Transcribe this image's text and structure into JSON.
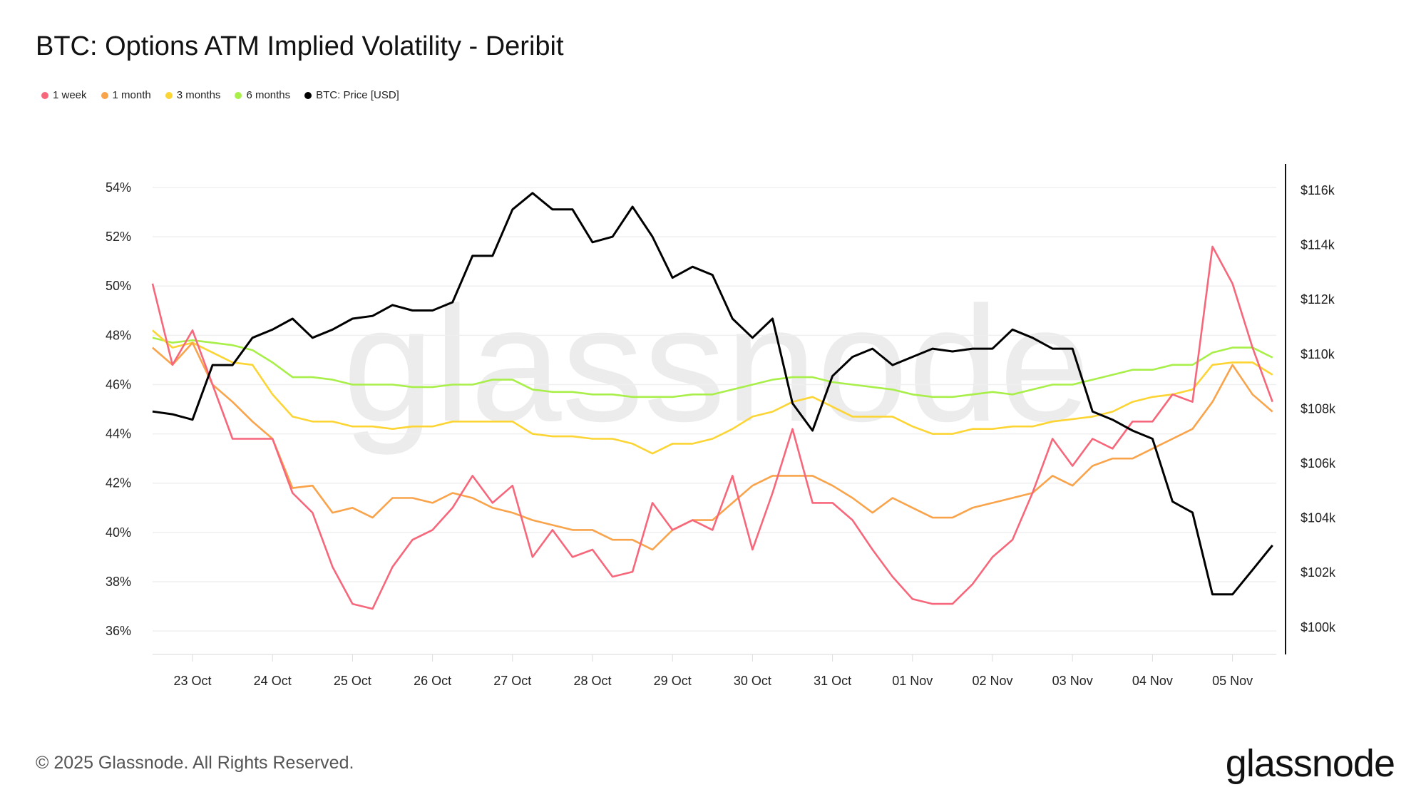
{
  "title": "BTC: Options ATM Implied Volatility - Deribit",
  "footer": "© 2025 Glassnode. All Rights Reserved.",
  "logo": "glassnode",
  "watermark": "glassnode",
  "chart_data": {
    "type": "line",
    "title": "BTC: Options ATM Implied Volatility - Deribit",
    "legend_position": "top-left",
    "grid": true,
    "x_ticks": [
      "23 Oct",
      "24 Oct",
      "25 Oct",
      "26 Oct",
      "27 Oct",
      "28 Oct",
      "29 Oct",
      "30 Oct",
      "31 Oct",
      "01 Nov",
      "02 Nov",
      "03 Nov",
      "04 Nov",
      "05 Nov"
    ],
    "y_left": {
      "ticks": [
        "36%",
        "38%",
        "40%",
        "42%",
        "44%",
        "46%",
        "48%",
        "50%",
        "52%",
        "54%"
      ],
      "range": [
        35,
        55
      ]
    },
    "y_right": {
      "ticks": [
        "$100k",
        "$102k",
        "$104k",
        "$106k",
        "$108k",
        "$110k",
        "$112k",
        "$114k",
        "$116k"
      ],
      "range": [
        99,
        117
      ]
    },
    "x": [
      "2025-10-22T12:00",
      "2025-10-22T18:00",
      "2025-10-23T00:00",
      "2025-10-23T06:00",
      "2025-10-23T12:00",
      "2025-10-23T18:00",
      "2025-10-24T00:00",
      "2025-10-24T06:00",
      "2025-10-24T12:00",
      "2025-10-24T18:00",
      "2025-10-25T00:00",
      "2025-10-25T06:00",
      "2025-10-25T12:00",
      "2025-10-25T18:00",
      "2025-10-26T00:00",
      "2025-10-26T06:00",
      "2025-10-26T12:00",
      "2025-10-26T18:00",
      "2025-10-27T00:00",
      "2025-10-27T06:00",
      "2025-10-27T12:00",
      "2025-10-27T18:00",
      "2025-10-28T00:00",
      "2025-10-28T06:00",
      "2025-10-28T12:00",
      "2025-10-28T18:00",
      "2025-10-29T00:00",
      "2025-10-29T06:00",
      "2025-10-29T12:00",
      "2025-10-29T18:00",
      "2025-10-30T00:00",
      "2025-10-30T06:00",
      "2025-10-30T12:00",
      "2025-10-30T18:00",
      "2025-10-31T00:00",
      "2025-10-31T06:00",
      "2025-10-31T12:00",
      "2025-10-31T18:00",
      "2025-11-01T00:00",
      "2025-11-01T06:00",
      "2025-11-01T12:00",
      "2025-11-01T18:00",
      "2025-11-02T00:00",
      "2025-11-02T06:00",
      "2025-11-02T12:00",
      "2025-11-02T18:00",
      "2025-11-03T00:00",
      "2025-11-03T06:00",
      "2025-11-03T12:00",
      "2025-11-03T18:00",
      "2025-11-04T00:00",
      "2025-11-04T06:00",
      "2025-11-04T12:00",
      "2025-11-04T18:00",
      "2025-11-05T00:00",
      "2025-11-05T06:00",
      "2025-11-05T12:00"
    ],
    "series": [
      {
        "name": "1 week",
        "axis": "left",
        "color": "#f7677b",
        "values": [
          50.1,
          46.8,
          48.2,
          46.0,
          43.8,
          43.8,
          43.8,
          41.6,
          40.8,
          38.6,
          37.1,
          36.9,
          38.6,
          39.7,
          40.1,
          41.0,
          42.3,
          41.2,
          41.9,
          39.0,
          40.1,
          39.0,
          39.3,
          38.2,
          38.4,
          41.2,
          40.1,
          40.5,
          40.1,
          42.3,
          39.3,
          41.6,
          44.2,
          41.2,
          41.2,
          40.5,
          39.3,
          38.2,
          37.3,
          37.1,
          37.1,
          37.9,
          39.0,
          39.7,
          41.6,
          43.8,
          42.7,
          43.8,
          43.4,
          44.5,
          44.5,
          45.6,
          45.3,
          51.6,
          50.1,
          47.5,
          45.3
        ]
      },
      {
        "name": "1 month",
        "axis": "left",
        "color": "#f9a34b",
        "values": [
          47.5,
          46.8,
          47.7,
          46.0,
          45.3,
          44.5,
          43.8,
          41.8,
          41.9,
          40.8,
          41.0,
          40.6,
          41.4,
          41.4,
          41.2,
          41.6,
          41.4,
          41.0,
          40.8,
          40.5,
          40.3,
          40.1,
          40.1,
          39.7,
          39.7,
          39.3,
          40.1,
          40.5,
          40.5,
          41.2,
          41.9,
          42.3,
          42.3,
          42.3,
          41.9,
          41.4,
          40.8,
          41.4,
          41.0,
          40.6,
          40.6,
          41.0,
          41.2,
          41.4,
          41.6,
          42.3,
          41.9,
          42.7,
          43.0,
          43.0,
          43.4,
          43.8,
          44.2,
          45.3,
          46.8,
          45.6,
          44.9
        ]
      },
      {
        "name": "3 months",
        "axis": "left",
        "color": "#fcd535",
        "values": [
          48.2,
          47.5,
          47.7,
          47.3,
          46.9,
          46.8,
          45.6,
          44.7,
          44.5,
          44.5,
          44.3,
          44.3,
          44.2,
          44.3,
          44.3,
          44.5,
          44.5,
          44.5,
          44.5,
          44.0,
          43.9,
          43.9,
          43.8,
          43.8,
          43.6,
          43.2,
          43.6,
          43.6,
          43.8,
          44.2,
          44.7,
          44.9,
          45.3,
          45.5,
          45.1,
          44.7,
          44.7,
          44.7,
          44.3,
          44.0,
          44.0,
          44.2,
          44.2,
          44.3,
          44.3,
          44.5,
          44.6,
          44.7,
          44.9,
          45.3,
          45.5,
          45.6,
          45.8,
          46.8,
          46.9,
          46.9,
          46.4
        ]
      },
      {
        "name": "6 months",
        "axis": "left",
        "color": "#a9ef4a",
        "values": [
          47.9,
          47.7,
          47.8,
          47.7,
          47.6,
          47.4,
          46.9,
          46.3,
          46.3,
          46.2,
          46.0,
          46.0,
          46.0,
          45.9,
          45.9,
          46.0,
          46.0,
          46.2,
          46.2,
          45.8,
          45.7,
          45.7,
          45.6,
          45.6,
          45.5,
          45.5,
          45.5,
          45.6,
          45.6,
          45.8,
          46.0,
          46.2,
          46.3,
          46.3,
          46.1,
          46.0,
          45.9,
          45.8,
          45.6,
          45.5,
          45.5,
          45.6,
          45.7,
          45.6,
          45.8,
          46.0,
          46.0,
          46.2,
          46.4,
          46.6,
          46.6,
          46.8,
          46.8,
          47.3,
          47.5,
          47.5,
          47.1
        ]
      },
      {
        "name": "BTC: Price [USD]",
        "axis": "right",
        "unit": "k USD",
        "color": "#000000",
        "values": [
          107.9,
          107.8,
          107.6,
          109.6,
          109.6,
          110.6,
          110.9,
          111.3,
          110.6,
          110.9,
          111.3,
          111.4,
          111.8,
          111.6,
          111.6,
          111.9,
          113.6,
          113.6,
          115.3,
          115.9,
          115.3,
          115.3,
          114.1,
          114.3,
          115.4,
          114.3,
          112.8,
          113.2,
          112.9,
          111.3,
          110.6,
          111.3,
          108.2,
          107.2,
          109.2,
          109.9,
          110.2,
          109.6,
          109.9,
          110.2,
          110.1,
          110.2,
          110.2,
          110.9,
          110.6,
          110.2,
          110.2,
          107.9,
          107.6,
          107.2,
          106.9,
          104.6,
          104.2,
          101.2,
          101.2,
          102.1,
          103.0
        ]
      }
    ]
  }
}
